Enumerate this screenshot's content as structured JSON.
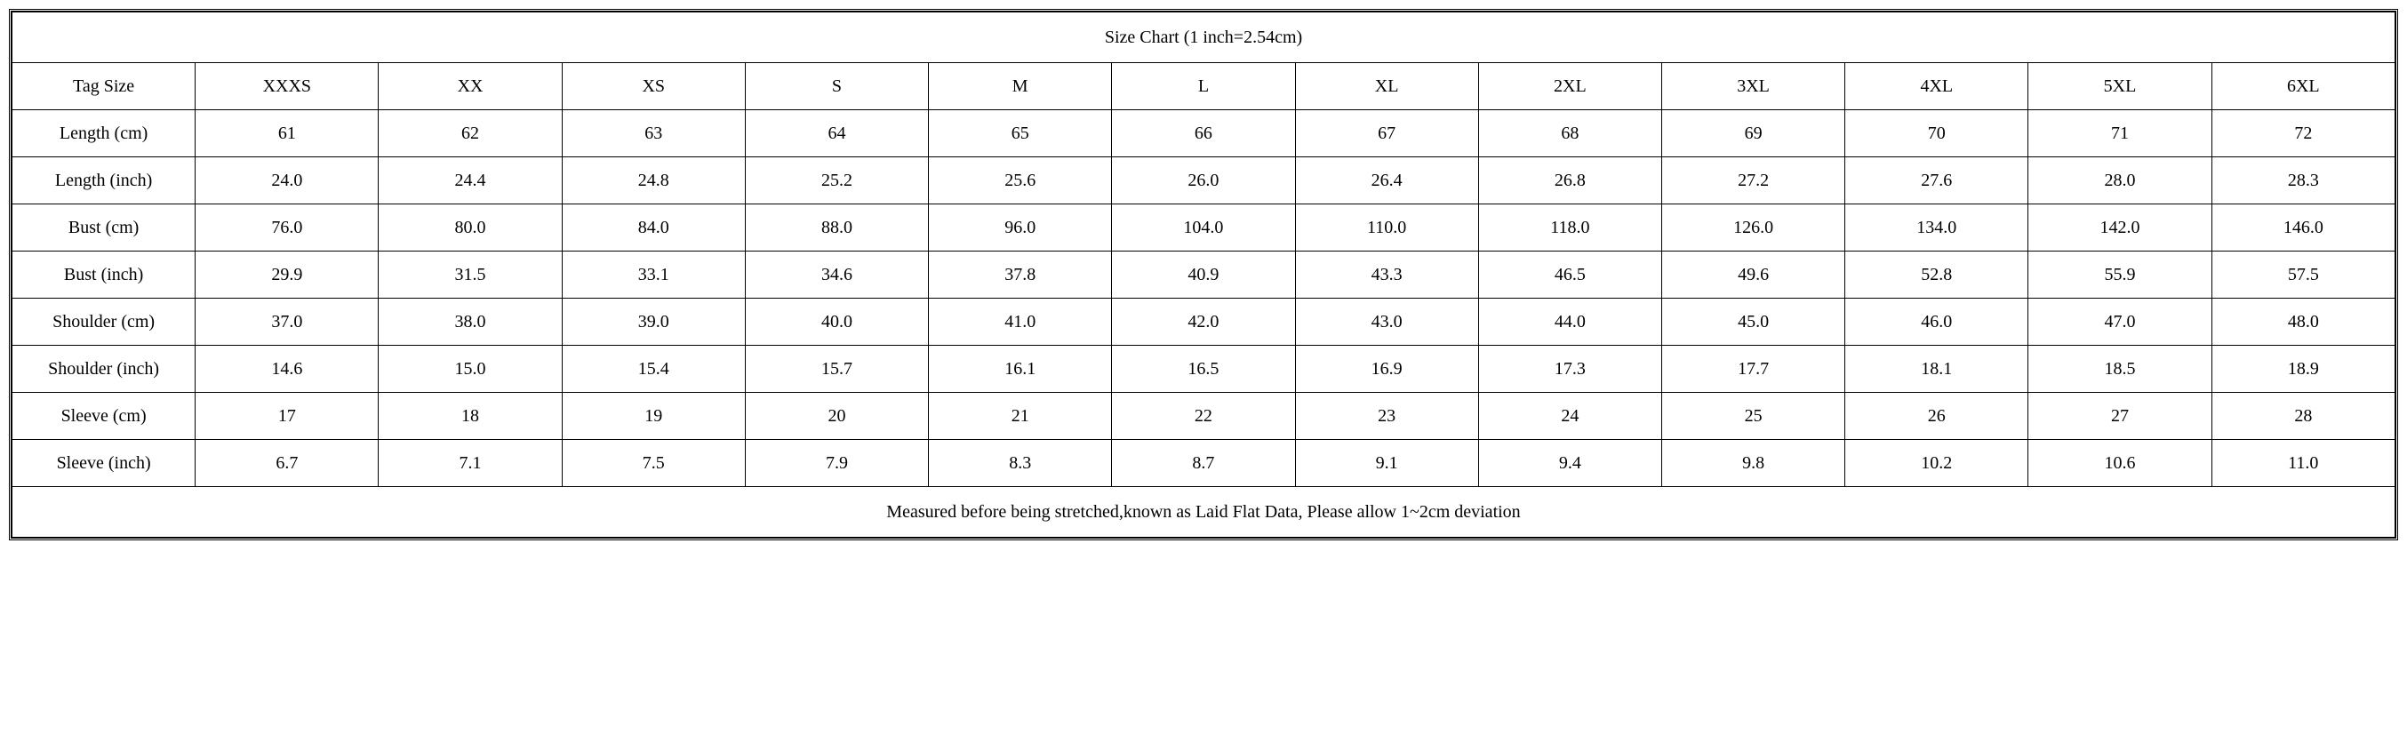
{
  "table": {
    "title": "Size Chart (1 inch=2.54cm)",
    "footer": "Measured before being stretched,known as Laid Flat Data, Please allow 1~2cm deviation",
    "border_color": "#000000",
    "background_color": "#ffffff",
    "text_color": "#000000",
    "font_family": "Times New Roman",
    "base_font_size_pt": 15,
    "columns": [
      "Tag Size",
      "XXXS",
      "XX",
      "XS",
      "S",
      "M",
      "L",
      "XL",
      "2XL",
      "3XL",
      "4XL",
      "5XL",
      "6XL"
    ],
    "rows": [
      {
        "label": "Length (cm)",
        "values": [
          "61",
          "62",
          "63",
          "64",
          "65",
          "66",
          "67",
          "68",
          "69",
          "70",
          "71",
          "72"
        ]
      },
      {
        "label": "Length (inch)",
        "values": [
          "24.0",
          "24.4",
          "24.8",
          "25.2",
          "25.6",
          "26.0",
          "26.4",
          "26.8",
          "27.2",
          "27.6",
          "28.0",
          "28.3"
        ]
      },
      {
        "label": "Bust (cm)",
        "values": [
          "76.0",
          "80.0",
          "84.0",
          "88.0",
          "96.0",
          "104.0",
          "110.0",
          "118.0",
          "126.0",
          "134.0",
          "142.0",
          "146.0"
        ]
      },
      {
        "label": "Bust (inch)",
        "values": [
          "29.9",
          "31.5",
          "33.1",
          "34.6",
          "37.8",
          "40.9",
          "43.3",
          "46.5",
          "49.6",
          "52.8",
          "55.9",
          "57.5"
        ]
      },
      {
        "label": "Shoulder (cm)",
        "values": [
          "37.0",
          "38.0",
          "39.0",
          "40.0",
          "41.0",
          "42.0",
          "43.0",
          "44.0",
          "45.0",
          "46.0",
          "47.0",
          "48.0"
        ]
      },
      {
        "label": "Shoulder (inch)",
        "values": [
          "14.6",
          "15.0",
          "15.4",
          "15.7",
          "16.1",
          "16.5",
          "16.9",
          "17.3",
          "17.7",
          "18.1",
          "18.5",
          "18.9"
        ]
      },
      {
        "label": "Sleeve (cm)",
        "values": [
          "17",
          "18",
          "19",
          "20",
          "21",
          "22",
          "23",
          "24",
          "25",
          "26",
          "27",
          "28"
        ]
      },
      {
        "label": "Sleeve (inch)",
        "values": [
          "6.7",
          "7.1",
          "7.5",
          "7.9",
          "8.3",
          "8.7",
          "9.1",
          "9.4",
          "9.8",
          "10.2",
          "10.6",
          "11.0"
        ]
      }
    ]
  }
}
